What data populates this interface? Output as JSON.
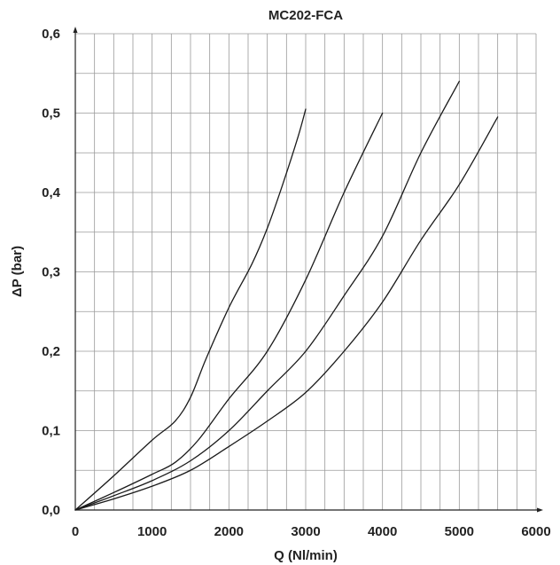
{
  "chart_data": {
    "type": "line",
    "title": "MC202-FCA",
    "xlabel": "Q (Nl/min)",
    "ylabel": "ΔP  (bar)",
    "xlim": [
      0,
      6000
    ],
    "ylim": [
      0,
      0.6
    ],
    "x_ticks": [
      0,
      1000,
      2000,
      3000,
      4000,
      5000,
      6000
    ],
    "x_tick_labels": [
      "0",
      "1000",
      "2000",
      "3000",
      "4000",
      "5000",
      "6000"
    ],
    "y_ticks": [
      0,
      0.1,
      0.2,
      0.3,
      0.4,
      0.5,
      0.6
    ],
    "y_tick_labels": [
      "0,0",
      "0,1",
      "0,2",
      "0,3",
      "0,4",
      "0,5",
      "0,6"
    ],
    "grid": true,
    "series": [
      {
        "x": [
          0,
          500,
          1000,
          1300,
          1500,
          1700,
          2000,
          2300,
          2500,
          2700,
          2900,
          3000
        ],
        "y": [
          0,
          0.043,
          0.088,
          0.112,
          0.142,
          0.19,
          0.255,
          0.31,
          0.355,
          0.41,
          0.47,
          0.505
        ]
      },
      {
        "x": [
          0,
          500,
          1000,
          1300,
          1600,
          2000,
          2500,
          3000,
          3500,
          4000
        ],
        "y": [
          0,
          0.022,
          0.045,
          0.06,
          0.088,
          0.14,
          0.2,
          0.29,
          0.4,
          0.5
        ]
      },
      {
        "x": [
          0,
          500,
          1000,
          1500,
          2000,
          2500,
          3000,
          3500,
          4000,
          4500,
          5000
        ],
        "y": [
          0,
          0.018,
          0.037,
          0.062,
          0.1,
          0.15,
          0.2,
          0.27,
          0.345,
          0.45,
          0.54
        ]
      },
      {
        "x": [
          0,
          500,
          1000,
          1500,
          2000,
          2500,
          3000,
          3500,
          4000,
          4500,
          5000,
          5500
        ],
        "y": [
          0,
          0.014,
          0.03,
          0.05,
          0.08,
          0.112,
          0.148,
          0.2,
          0.262,
          0.34,
          0.41,
          0.495
        ]
      }
    ]
  }
}
